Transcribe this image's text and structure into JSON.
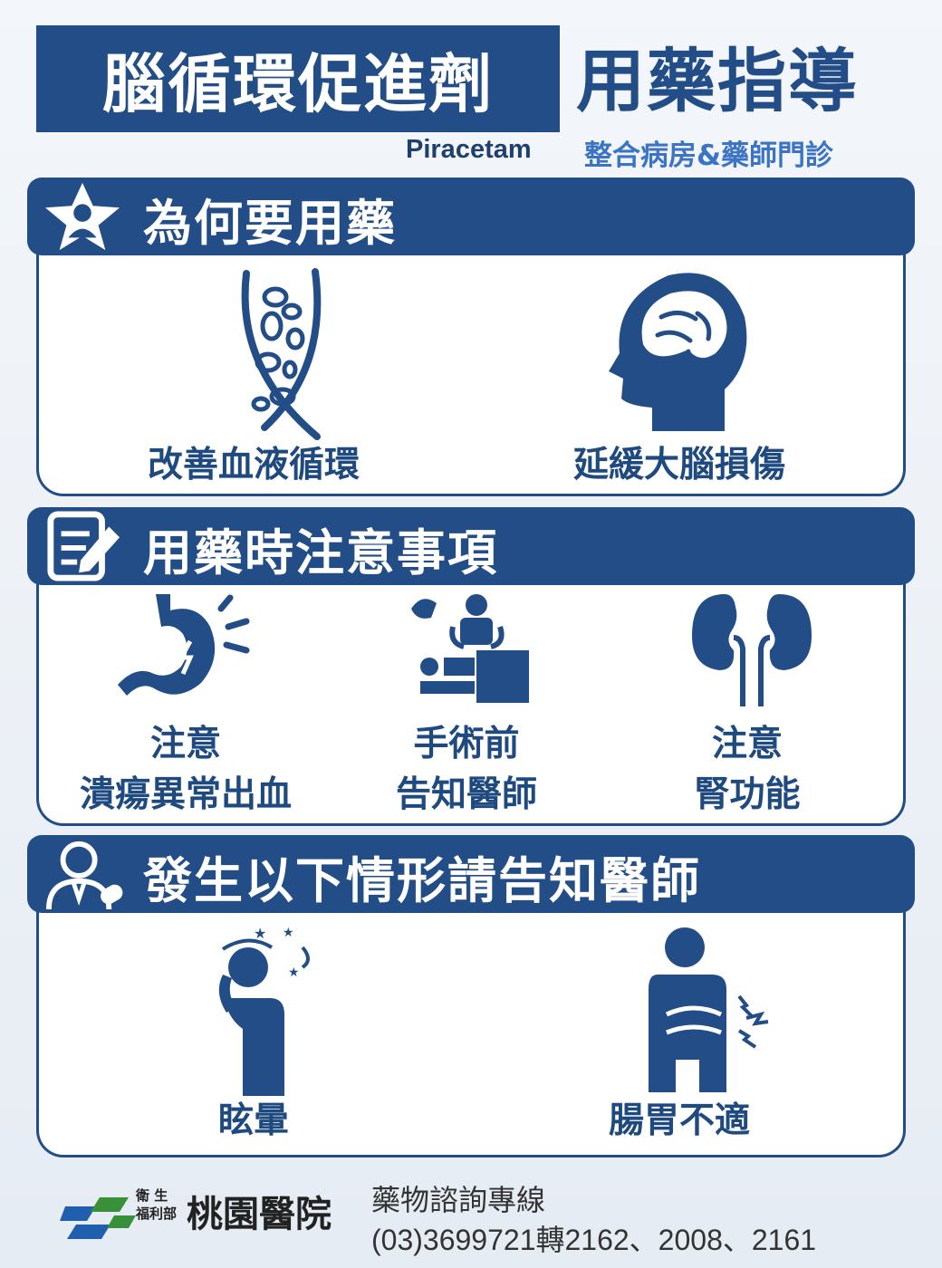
{
  "header": {
    "title": "腦循環促進劑",
    "title_right": "用藥指導",
    "drug_name": "Piracetam",
    "subtitle": "整合病房&藥師門診"
  },
  "sections": [
    {
      "title": "為何要用藥",
      "items": [
        {
          "label": "改善血液循環",
          "icon": "blood-vessel-icon"
        },
        {
          "label": "延緩大腦損傷",
          "icon": "brain-head-icon"
        }
      ]
    },
    {
      "title": "用藥時注意事項",
      "items": [
        {
          "label_line1": "注意",
          "label_line2": "潰瘍異常出血",
          "icon": "stomach-pain-icon"
        },
        {
          "label_line1": "手術前",
          "label_line2": "告知醫師",
          "icon": "surgery-icon"
        },
        {
          "label_line1": "注意",
          "label_line2": "腎功能",
          "icon": "kidney-icon"
        }
      ]
    },
    {
      "title": "發生以下情形請告知醫師",
      "items": [
        {
          "label": "眩暈",
          "icon": "dizzy-person-icon"
        },
        {
          "label": "腸胃不適",
          "icon": "stomachache-person-icon"
        }
      ]
    }
  ],
  "footer": {
    "org_small_1": "衛 生",
    "org_small_2": "福利部",
    "org_name": "桃園醫院",
    "hotline_label": "藥物諮詢專線",
    "hotline_number": "(03)3699721轉2162、2008、2161"
  },
  "colors": {
    "primary": "#234d86",
    "accent": "#3b74c4",
    "background": "#eef2f7"
  }
}
